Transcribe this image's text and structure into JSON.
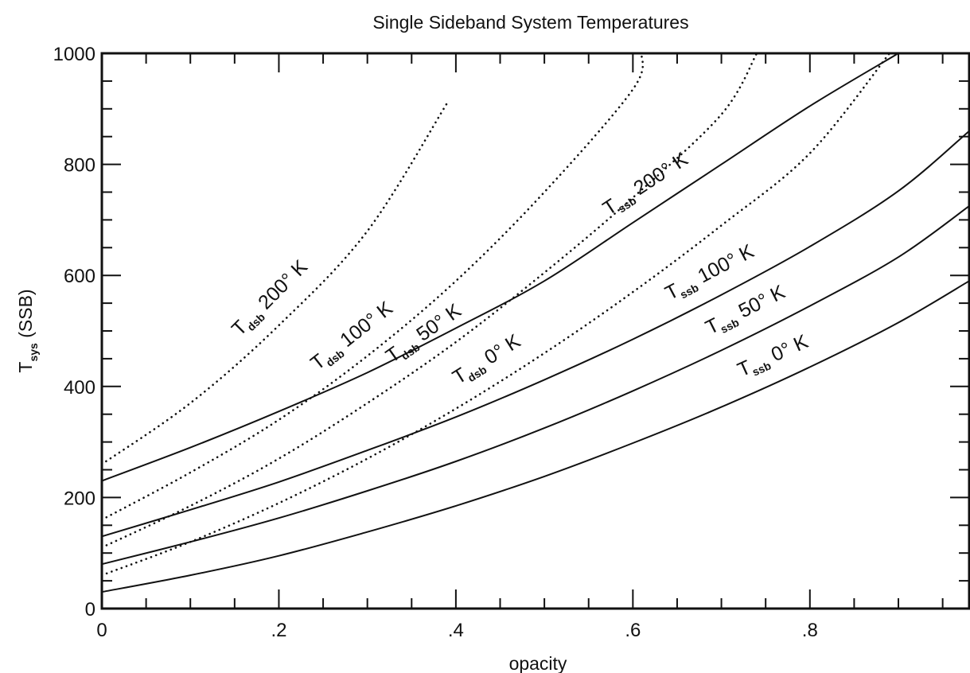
{
  "chart_data": {
    "type": "line",
    "title": "Single Sideband System Temperatures",
    "xlabel": "opacity",
    "ylabel_main": "T",
    "ylabel_sub": "sys",
    "ylabel_rest": "  (SSB)",
    "xlim": [
      0,
      0.98
    ],
    "ylim": [
      0,
      1000
    ],
    "xticks": [
      {
        "value": 0,
        "label": "0"
      },
      {
        "value": 0.2,
        "label": ".2"
      },
      {
        "value": 0.4,
        "label": ".4"
      },
      {
        "value": 0.6,
        "label": ".6"
      },
      {
        "value": 0.8,
        "label": ".8"
      }
    ],
    "yticks": [
      {
        "value": 0,
        "label": "0"
      },
      {
        "value": 200,
        "label": "200"
      },
      {
        "value": 400,
        "label": "400"
      },
      {
        "value": 600,
        "label": "600"
      },
      {
        "value": 800,
        "label": "800"
      },
      {
        "value": 1000,
        "label": "1000"
      }
    ],
    "grid": false,
    "series": [
      {
        "name": "T_ssb 0° K",
        "label_main": "T",
        "label_sub": "ssb",
        "label_rest": " 0° K",
        "style": "solid",
        "x": [
          0,
          0.1,
          0.2,
          0.3,
          0.4,
          0.5,
          0.6,
          0.7,
          0.8,
          0.9,
          0.98
        ],
        "y": [
          30,
          60,
          95,
          138,
          185,
          238,
          298,
          363,
          435,
          515,
          590
        ]
      },
      {
        "name": "T_ssb 50° K",
        "label_main": "T",
        "label_sub": "ssb",
        "label_rest": " 50° K",
        "style": "solid",
        "x": [
          0,
          0.1,
          0.2,
          0.3,
          0.4,
          0.5,
          0.6,
          0.7,
          0.8,
          0.9,
          0.98
        ],
        "y": [
          80,
          120,
          163,
          212,
          265,
          325,
          392,
          465,
          545,
          633,
          725
        ]
      },
      {
        "name": "T_ssb 100° K",
        "label_main": "T",
        "label_sub": "ssb",
        "label_rest": " 100° K",
        "style": "solid",
        "x": [
          0,
          0.1,
          0.2,
          0.3,
          0.4,
          0.5,
          0.6,
          0.7,
          0.8,
          0.9,
          0.98
        ],
        "y": [
          130,
          178,
          228,
          285,
          345,
          412,
          485,
          565,
          652,
          752,
          860
        ]
      },
      {
        "name": "T_ssb 200° K",
        "label_main": "T",
        "label_sub": "ssb",
        "label_rest": " 200° K",
        "style": "solid",
        "x": [
          0,
          0.1,
          0.2,
          0.3,
          0.4,
          0.5,
          0.6,
          0.7,
          0.8,
          0.9
        ],
        "y": [
          230,
          290,
          355,
          425,
          505,
          590,
          695,
          800,
          905,
          1000
        ]
      },
      {
        "name": "T_dsb 0° K",
        "label_main": "T",
        "label_sub": "dsb",
        "label_rest": " 0° K",
        "style": "dotted",
        "x": [
          0,
          0.1,
          0.2,
          0.3,
          0.4,
          0.5,
          0.6,
          0.7,
          0.8,
          0.89
        ],
        "y": [
          60,
          120,
          190,
          270,
          360,
          460,
          570,
          690,
          820,
          1000
        ]
      },
      {
        "name": "T_dsb 50° K",
        "label_main": "T",
        "label_sub": "dsb",
        "label_rest": " 50° K",
        "style": "dotted",
        "x": [
          0,
          0.1,
          0.2,
          0.3,
          0.4,
          0.5,
          0.6,
          0.7,
          0.74
        ],
        "y": [
          110,
          185,
          270,
          370,
          480,
          605,
          740,
          890,
          1000
        ]
      },
      {
        "name": "T_dsb 100° K",
        "label_main": "T",
        "label_sub": "dsb",
        "label_rest": " 100° K",
        "style": "dotted",
        "x": [
          0,
          0.1,
          0.2,
          0.3,
          0.4,
          0.5,
          0.6,
          0.61
        ],
        "y": [
          160,
          245,
          340,
          455,
          590,
          750,
          935,
          1000
        ]
      },
      {
        "name": "T_dsb 200° K",
        "label_main": "T",
        "label_sub": "dsb",
        "label_rest": " 200° K",
        "style": "dotted",
        "x": [
          0,
          0.1,
          0.2,
          0.3,
          0.39
        ],
        "y": [
          260,
          370,
          510,
          680,
          910
        ]
      }
    ]
  }
}
